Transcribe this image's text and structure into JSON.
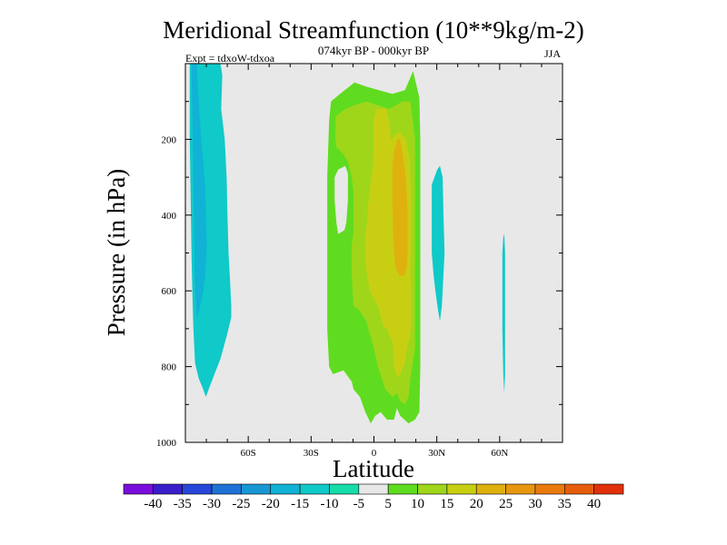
{
  "chart_data": {
    "type": "heatmap",
    "title": "Meridional Streamfunction (10**9kg/m-2)",
    "subtitle": "074kyr BP - 000kyr BP",
    "left_label": "Expt = tdxoW-tdxoa",
    "right_label": "JJA",
    "xlabel": "Latitude",
    "ylabel": "Pressure (in hPa)",
    "xlim": [
      -90,
      90
    ],
    "ylim": [
      1000,
      0
    ],
    "y_reversed": true,
    "x_ticks": [
      {
        "value": -60,
        "label": "60S"
      },
      {
        "value": -30,
        "label": "30S"
      },
      {
        "value": 0,
        "label": "0"
      },
      {
        "value": 30,
        "label": "30N"
      },
      {
        "value": 60,
        "label": "60N"
      }
    ],
    "y_ticks": [
      {
        "value": 200,
        "label": "200"
      },
      {
        "value": 400,
        "label": "400"
      },
      {
        "value": 600,
        "label": "600"
      },
      {
        "value": 800,
        "label": "800"
      },
      {
        "value": 1000,
        "label": "1000"
      }
    ],
    "background_color": "#e8e8e8",
    "colorbar": {
      "placement": "bottom",
      "labels": [
        "-40",
        "-35",
        "-30",
        "-25",
        "-20",
        "-15",
        "-10",
        "-5",
        "5",
        "10",
        "15",
        "20",
        "25",
        "30",
        "35",
        "40"
      ],
      "colors": [
        "#7a0ddb",
        "#3a1ec9",
        "#2846d8",
        "#1f71d6",
        "#1798d4",
        "#10b2d6",
        "#10c9c9",
        "#16dcaa",
        "#e8e8e8",
        "#5fdc20",
        "#9fd61a",
        "#c8cf12",
        "#dfb10f",
        "#e7960e",
        "#e97a0c",
        "#e65d0a",
        "#e0310a"
      ]
    },
    "regions": [
      {
        "level_index": 6,
        "points": [
          [
            -87.9,
            0
          ],
          [
            -73.3,
            0
          ],
          [
            -72.4,
            30
          ],
          [
            -72.9,
            120
          ],
          [
            -71.2,
            200
          ],
          [
            -70.3,
            300
          ],
          [
            -69.9,
            400
          ],
          [
            -69.4,
            500
          ],
          [
            -68.6,
            580
          ],
          [
            -68.1,
            640
          ],
          [
            -68.1,
            670
          ],
          [
            -70.3,
            720
          ],
          [
            -73.3,
            780
          ],
          [
            -76.8,
            830
          ],
          [
            -78.9,
            860
          ],
          [
            -80.2,
            880
          ],
          [
            -81.5,
            860
          ],
          [
            -83.7,
            830
          ],
          [
            -85.4,
            790
          ],
          [
            -86.2,
            700
          ],
          [
            -86.7,
            600
          ],
          [
            -87.1,
            500
          ],
          [
            -87.5,
            350
          ],
          [
            -87.9,
            200
          ]
        ]
      },
      {
        "level_index": 5,
        "points": [
          [
            -87.1,
            0
          ],
          [
            -84.5,
            0
          ],
          [
            -84.1,
            60
          ],
          [
            -82.4,
            200
          ],
          [
            -80.6,
            320
          ],
          [
            -80.2,
            400
          ],
          [
            -79.8,
            480
          ],
          [
            -80.6,
            560
          ],
          [
            -81.5,
            600
          ],
          [
            -83.3,
            650
          ],
          [
            -84.5,
            670
          ],
          [
            -85.4,
            600
          ],
          [
            -85.8,
            480
          ],
          [
            -86.2,
            300
          ],
          [
            -86.7,
            120
          ]
        ]
      },
      {
        "level_index": 6,
        "points": [
          [
            27.6,
            320
          ],
          [
            30.2,
            280
          ],
          [
            31.5,
            270
          ],
          [
            32.8,
            300
          ],
          [
            33.2,
            400
          ],
          [
            33.7,
            500
          ],
          [
            32.8,
            600
          ],
          [
            32.4,
            640
          ],
          [
            31.5,
            680
          ],
          [
            30.6,
            650
          ],
          [
            29.3,
            600
          ],
          [
            28.5,
            560
          ],
          [
            27.6,
            500
          ],
          [
            27.6,
            400
          ]
        ]
      },
      {
        "level_index": 6,
        "points": [
          [
            62.2,
            450
          ],
          [
            62.6,
            500
          ],
          [
            62.6,
            700
          ],
          [
            62.6,
            820
          ],
          [
            62.2,
            870
          ],
          [
            61.7,
            820
          ],
          [
            61.3,
            700
          ],
          [
            61.3,
            500
          ],
          [
            61.7,
            460
          ]
        ]
      },
      {
        "level_index": 9,
        "points": [
          [
            -21.4,
            150
          ],
          [
            -20.5,
            100
          ],
          [
            -16.2,
            80
          ],
          [
            -9.3,
            50
          ],
          [
            -4.1,
            60
          ],
          [
            2.3,
            70
          ],
          [
            8.8,
            80
          ],
          [
            14.8,
            70
          ],
          [
            18.7,
            20
          ],
          [
            21.7,
            90
          ],
          [
            22.1,
            200
          ],
          [
            22.1,
            400
          ],
          [
            22.1,
            600
          ],
          [
            22.1,
            800
          ],
          [
            21.7,
            920
          ],
          [
            19.6,
            940
          ],
          [
            16.5,
            950
          ],
          [
            12.6,
            930
          ],
          [
            10.9,
            910
          ],
          [
            9.6,
            940
          ],
          [
            6.2,
            940
          ],
          [
            3.2,
            920
          ],
          [
            0.6,
            930
          ],
          [
            -1.5,
            950
          ],
          [
            -4.1,
            920
          ],
          [
            -6.7,
            880
          ],
          [
            -9.7,
            860
          ],
          [
            -10.6,
            840
          ],
          [
            -14.5,
            810
          ],
          [
            -19.6,
            820
          ],
          [
            -21.4,
            800
          ],
          [
            -22.3,
            700
          ],
          [
            -22.3,
            500
          ],
          [
            -22.3,
            300
          ]
        ]
      },
      {
        "level_index": 8,
        "points": [
          [
            -17.1,
            280
          ],
          [
            -13.7,
            270
          ],
          [
            -12.4,
            290
          ],
          [
            -12.4,
            360
          ],
          [
            -13.2,
            420
          ],
          [
            -14.1,
            440
          ],
          [
            -17.1,
            450
          ],
          [
            -17.9,
            420
          ],
          [
            -18.8,
            360
          ],
          [
            -18.8,
            300
          ]
        ]
      },
      {
        "level_index": 10,
        "points": [
          [
            -18.4,
            140
          ],
          [
            -13.7,
            120
          ],
          [
            -9.3,
            110
          ],
          [
            -3.7,
            100
          ],
          [
            1.9,
            110
          ],
          [
            7.5,
            120
          ],
          [
            13.5,
            100
          ],
          [
            17.4,
            100
          ],
          [
            19.6,
            200
          ],
          [
            19.6,
            400
          ],
          [
            19.6,
            600
          ],
          [
            19.6,
            750
          ],
          [
            17.4,
            830
          ],
          [
            16.5,
            880
          ],
          [
            14.8,
            900
          ],
          [
            12.6,
            890
          ],
          [
            10.9,
            870
          ],
          [
            8.8,
            880
          ],
          [
            5.4,
            860
          ],
          [
            1.9,
            800
          ],
          [
            -0.6,
            740
          ],
          [
            -3.7,
            680
          ],
          [
            -7.1,
            650
          ],
          [
            -9.7,
            640
          ],
          [
            -10.6,
            560
          ],
          [
            -10.6,
            480
          ],
          [
            -9.7,
            440
          ],
          [
            -9.7,
            400
          ],
          [
            -9.7,
            340
          ],
          [
            -10.6,
            300
          ],
          [
            -12.4,
            260
          ],
          [
            -14.5,
            240
          ],
          [
            -16.2,
            230
          ],
          [
            -17.9,
            220
          ],
          [
            -18.4,
            200
          ]
        ]
      },
      {
        "level_index": 11,
        "points": [
          [
            -0.2,
            150
          ],
          [
            1.0,
            120
          ],
          [
            5.8,
            120
          ],
          [
            7.5,
            160
          ],
          [
            8.0,
            200
          ],
          [
            12.2,
            180
          ],
          [
            15.2,
            200
          ],
          [
            17.0,
            250
          ],
          [
            17.8,
            350
          ],
          [
            17.8,
            450
          ],
          [
            17.4,
            550
          ],
          [
            17.8,
            600
          ],
          [
            17.8,
            700
          ],
          [
            15.6,
            760
          ],
          [
            14.8,
            790
          ],
          [
            12.6,
            820
          ],
          [
            11.3,
            830
          ],
          [
            9.6,
            800
          ],
          [
            9.1,
            740
          ],
          [
            6.2,
            700
          ],
          [
            4.9,
            700
          ],
          [
            1.9,
            640
          ],
          [
            -1.1,
            610
          ],
          [
            -2.0,
            600
          ],
          [
            -3.3,
            560
          ],
          [
            -4.1,
            520
          ],
          [
            -4.1,
            460
          ],
          [
            -3.3,
            420
          ],
          [
            -2.8,
            380
          ],
          [
            -2.0,
            330
          ],
          [
            -0.6,
            280
          ],
          [
            -0.2,
            230
          ]
        ]
      },
      {
        "level_index": 12,
        "points": [
          [
            8.8,
            270
          ],
          [
            10.0,
            220
          ],
          [
            11.3,
            200
          ],
          [
            12.6,
            200
          ],
          [
            13.5,
            230
          ],
          [
            14.8,
            280
          ],
          [
            15.6,
            340
          ],
          [
            16.1,
            400
          ],
          [
            16.1,
            500
          ],
          [
            15.6,
            540
          ],
          [
            14.3,
            560
          ],
          [
            12.2,
            560
          ],
          [
            10.4,
            540
          ],
          [
            9.6,
            500
          ],
          [
            9.1,
            440
          ],
          [
            8.8,
            360
          ]
        ]
      }
    ]
  }
}
